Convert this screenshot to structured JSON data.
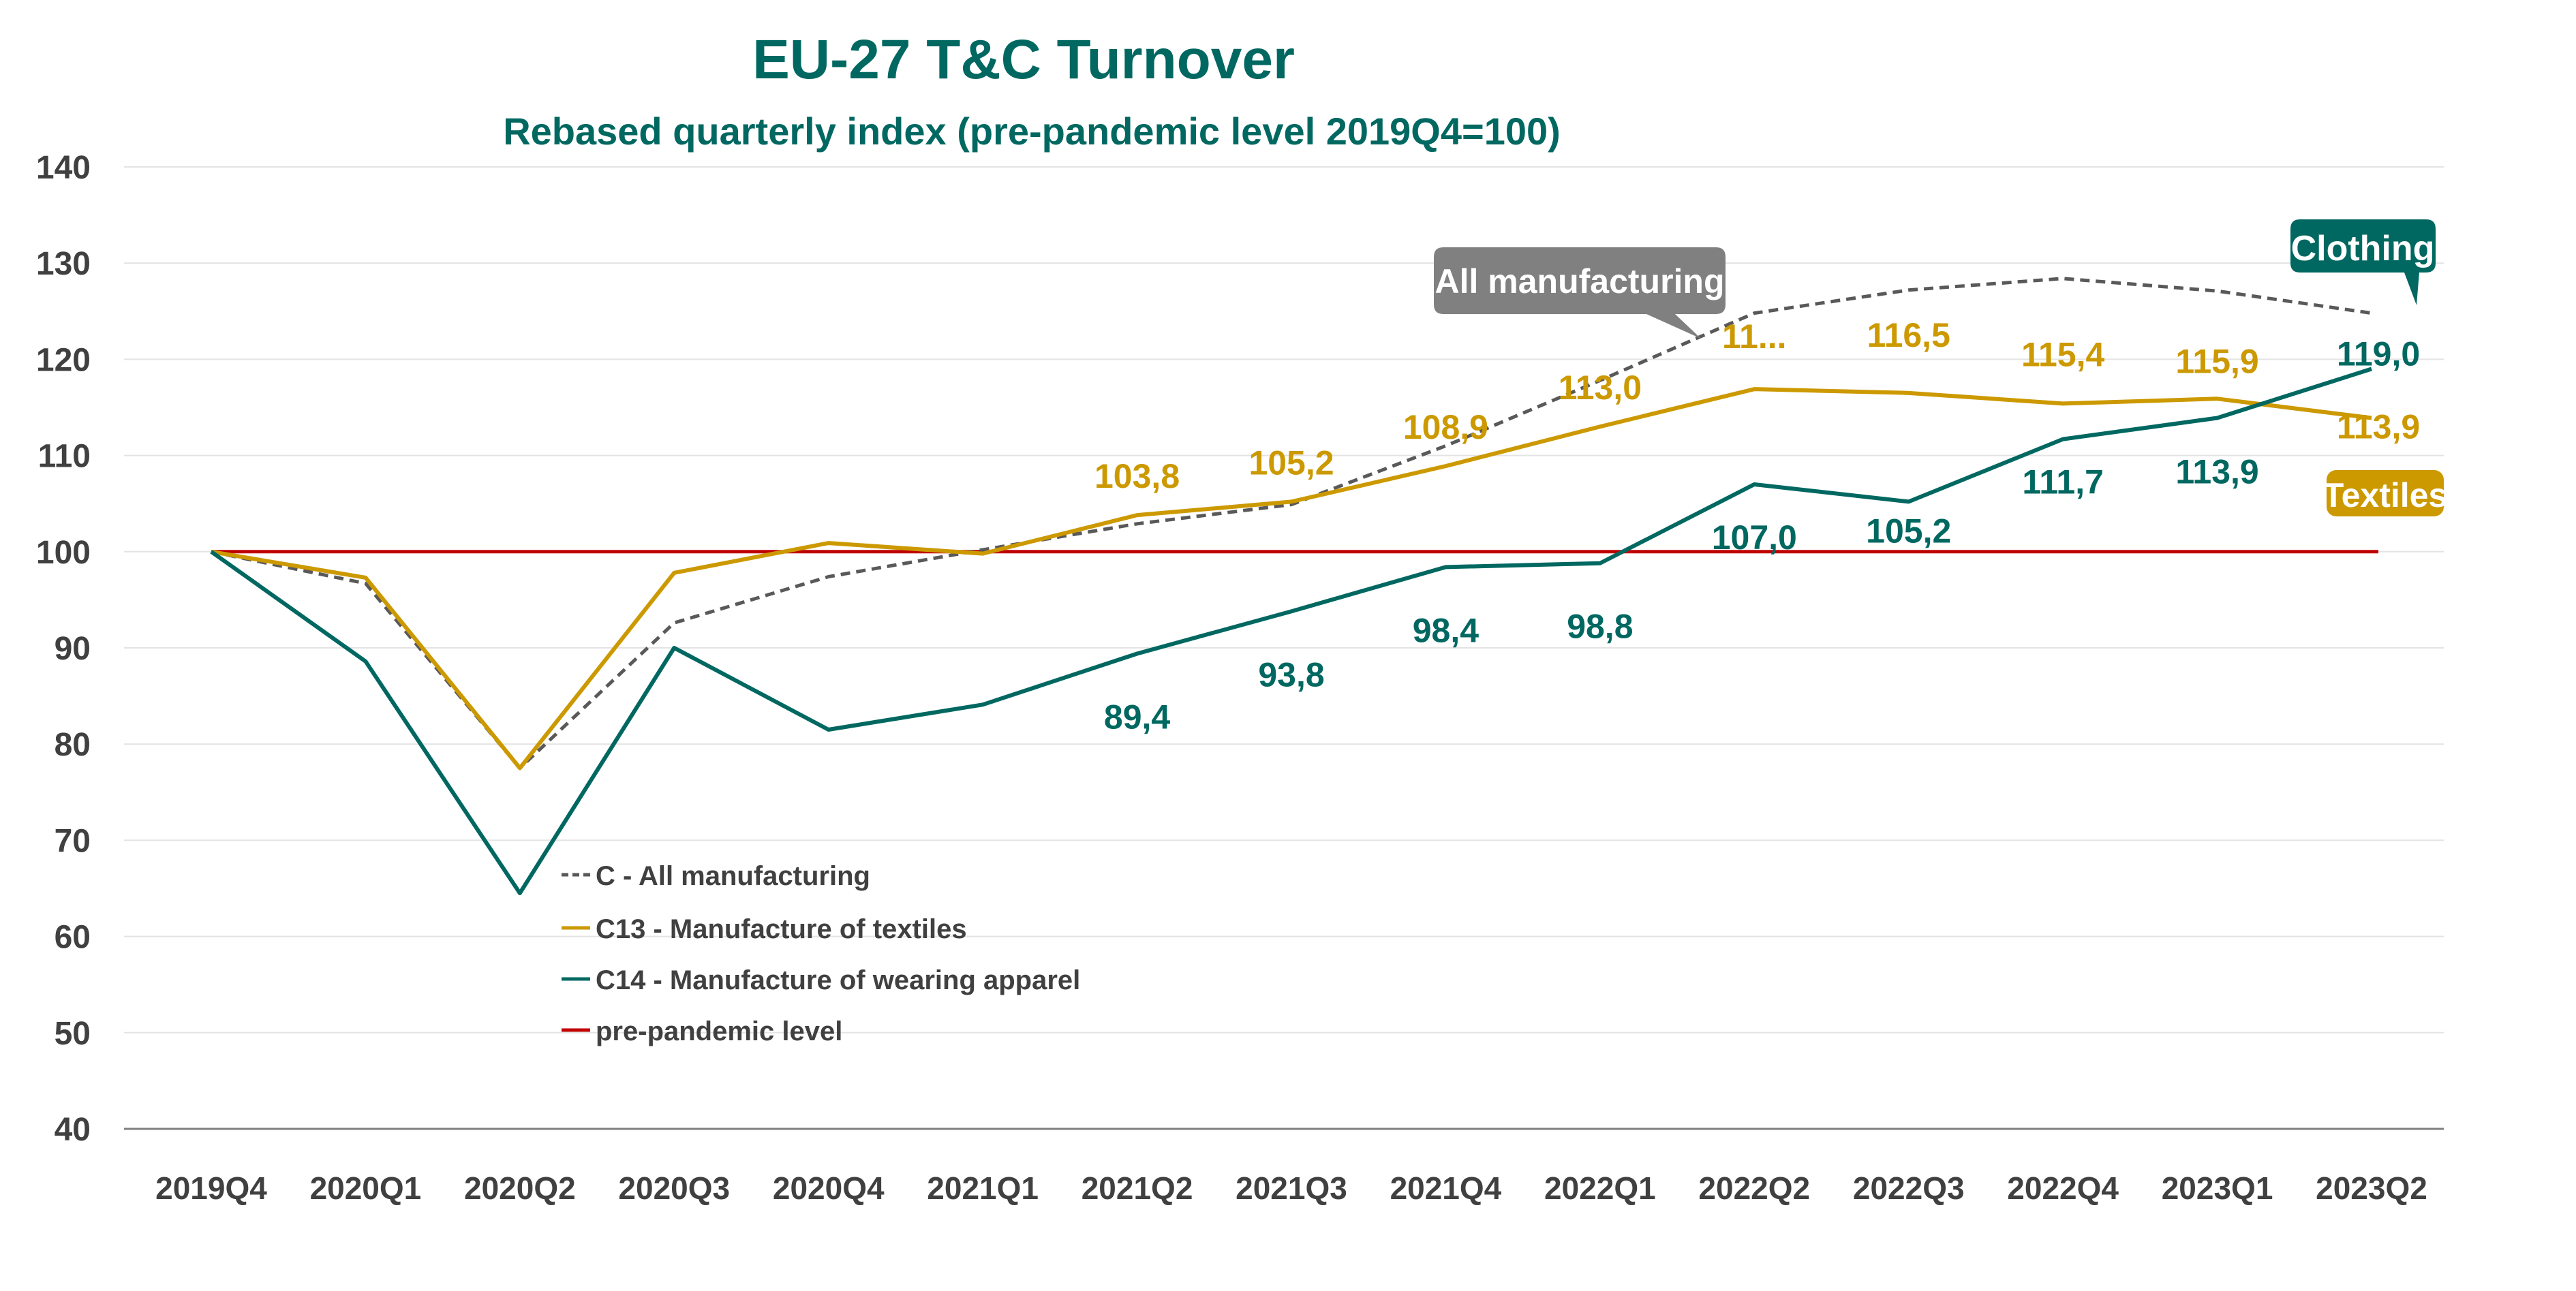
{
  "chart_data": {
    "type": "line",
    "title": "EU-27 T&C Turnover",
    "subtitle": "Rebased quarterly index (pre-pandemic level 2019Q4=100)",
    "xlabel": "",
    "ylabel": "",
    "ylim": [
      40,
      140
    ],
    "yticks": [
      "40",
      "50",
      "60",
      "70",
      "80",
      "90",
      "100",
      "110",
      "120",
      "130",
      "140"
    ],
    "grid": true,
    "legend_position": "bottom-left",
    "categories": [
      "2019Q4",
      "2020Q1",
      "2020Q2",
      "2020Q3",
      "2020Q4",
      "2021Q1",
      "2021Q2",
      "2021Q3",
      "2021Q4",
      "2022Q1",
      "2022Q2",
      "2022Q3",
      "2022Q4",
      "2023Q1",
      "2023Q2"
    ],
    "series": [
      {
        "name": "C - All manufacturing",
        "color": "#595959",
        "dashed": true,
        "values": [
          100,
          96.7,
          77.5,
          92.6,
          97.4,
          100.2,
          102.9,
          104.9,
          111.0,
          117.8,
          124.8,
          127.2,
          128.4,
          127.1,
          124.8
        ],
        "labels": []
      },
      {
        "name": "C13 - Manufacture of textiles",
        "color": "#CC9900",
        "dashed": false,
        "values": [
          100,
          97.3,
          77.5,
          97.8,
          100.9,
          99.8,
          103.8,
          105.2,
          108.9,
          113.0,
          116.9,
          116.5,
          115.4,
          115.9,
          113.9
        ],
        "labels": [
          "",
          "",
          "",
          "",
          "",
          "",
          "103,8",
          "105,2",
          "108,9",
          "113,0",
          "11...",
          "116,5",
          "115,4",
          "115,9",
          "113,9"
        ]
      },
      {
        "name": "C14 - Manufacture of wearing apparel",
        "color": "#006861",
        "dashed": false,
        "values": [
          100,
          88.6,
          64.5,
          90.0,
          81.5,
          84.1,
          89.4,
          93.8,
          98.4,
          98.8,
          107.0,
          105.2,
          111.7,
          113.9,
          119.0
        ],
        "labels": [
          "",
          "",
          "",
          "",
          "",
          "",
          "89,4",
          "93,8",
          "98,4",
          "98,8",
          "107,0",
          "105,2",
          "111,7",
          "113,9",
          "119,0"
        ]
      },
      {
        "name": "pre-pandemic level",
        "color": "#C00000",
        "dashed": false,
        "values": [
          100,
          100,
          100,
          100,
          100,
          100,
          100,
          100,
          100,
          100,
          100,
          100,
          100,
          100,
          100
        ],
        "labels": []
      }
    ],
    "annotations": [
      {
        "text": "All manufacturing",
        "color": "#808080"
      },
      {
        "text": "Clothing",
        "color": "#006861"
      },
      {
        "text": "Textiles",
        "color": "#CC9900"
      }
    ]
  }
}
